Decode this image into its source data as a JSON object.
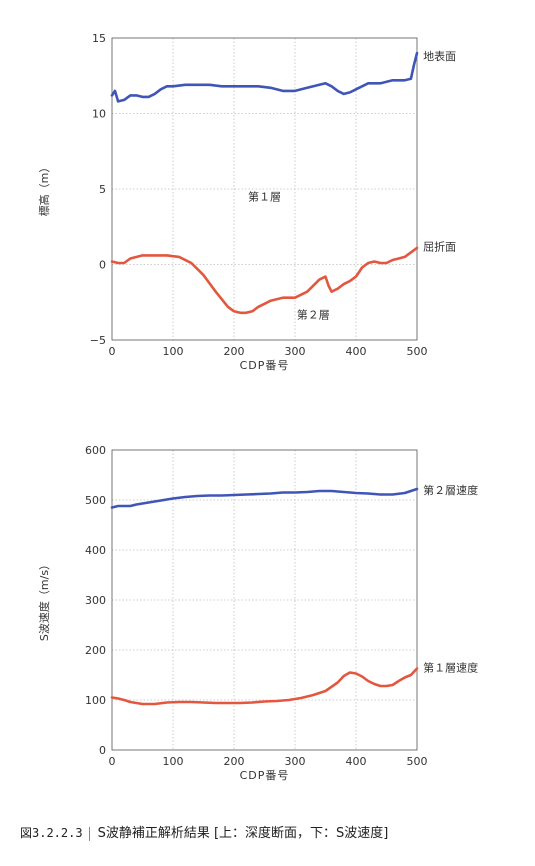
{
  "caption": {
    "number": "図3.2.2.3",
    "text": "S波静補正解析結果 [上：深度断面，下：S波速度]"
  },
  "chart_data": [
    {
      "type": "line",
      "title": "",
      "xlabel": "CDP番号",
      "ylabel": "標高（m）",
      "xlim": [
        0,
        500
      ],
      "ylim": [
        -5,
        15
      ],
      "xticks": [
        0,
        100,
        200,
        300,
        400,
        500
      ],
      "yticks": [
        -5,
        0,
        5,
        10,
        15
      ],
      "ytick_labels": [
        "−5",
        "0",
        "5",
        "10",
        "15"
      ],
      "grid": true,
      "annotations": [
        {
          "text": "地表面",
          "x": 510,
          "y": 13.8
        },
        {
          "text": "屈折面",
          "x": 510,
          "y": 1.2
        },
        {
          "text": "第１層",
          "x": 250,
          "y": 4.5
        },
        {
          "text": "第２層",
          "x": 330,
          "y": -3.3
        }
      ],
      "series": [
        {
          "name": "地表面",
          "color": "#3f56b8",
          "x": [
            0,
            5,
            10,
            20,
            30,
            40,
            50,
            60,
            70,
            80,
            90,
            100,
            120,
            140,
            160,
            180,
            200,
            220,
            240,
            260,
            280,
            300,
            320,
            340,
            350,
            360,
            370,
            380,
            390,
            400,
            420,
            440,
            460,
            480,
            490,
            495,
            500
          ],
          "y": [
            11.2,
            11.5,
            10.8,
            10.9,
            11.2,
            11.2,
            11.1,
            11.1,
            11.3,
            11.6,
            11.8,
            11.8,
            11.9,
            11.9,
            11.9,
            11.8,
            11.8,
            11.8,
            11.8,
            11.7,
            11.5,
            11.5,
            11.7,
            11.9,
            12.0,
            11.8,
            11.5,
            11.3,
            11.4,
            11.6,
            12.0,
            12.0,
            12.2,
            12.2,
            12.3,
            13.2,
            14.0
          ]
        },
        {
          "name": "屈折面",
          "color": "#e3573f",
          "x": [
            0,
            10,
            20,
            30,
            50,
            70,
            90,
            110,
            130,
            150,
            170,
            190,
            200,
            210,
            220,
            230,
            240,
            250,
            260,
            280,
            300,
            320,
            340,
            350,
            355,
            360,
            370,
            380,
            390,
            400,
            410,
            420,
            430,
            440,
            450,
            460,
            470,
            480,
            490,
            500
          ],
          "y": [
            0.2,
            0.1,
            0.1,
            0.4,
            0.6,
            0.6,
            0.6,
            0.5,
            0.1,
            -0.7,
            -1.8,
            -2.8,
            -3.1,
            -3.2,
            -3.2,
            -3.1,
            -2.8,
            -2.6,
            -2.4,
            -2.2,
            -2.2,
            -1.8,
            -1.0,
            -0.8,
            -1.4,
            -1.8,
            -1.6,
            -1.3,
            -1.1,
            -0.8,
            -0.2,
            0.1,
            0.2,
            0.1,
            0.1,
            0.3,
            0.4,
            0.5,
            0.8,
            1.1
          ]
        }
      ]
    },
    {
      "type": "line",
      "title": "",
      "xlabel": "CDP番号",
      "ylabel": "S波速度（m/s）",
      "xlim": [
        0,
        500
      ],
      "ylim": [
        0,
        600
      ],
      "xticks": [
        0,
        100,
        200,
        300,
        400,
        500
      ],
      "yticks": [
        0,
        100,
        200,
        300,
        400,
        500,
        600
      ],
      "ytick_labels": [
        "0",
        "100",
        "200",
        "300",
        "400",
        "500",
        "600"
      ],
      "grid": true,
      "annotations": [
        {
          "text": "第２層速度",
          "x": 510,
          "y": 520
        },
        {
          "text": "第１層速度",
          "x": 510,
          "y": 165
        }
      ],
      "series": [
        {
          "name": "第２層速度",
          "color": "#3f56b8",
          "x": [
            0,
            10,
            20,
            30,
            40,
            60,
            80,
            100,
            120,
            140,
            160,
            180,
            200,
            220,
            240,
            260,
            280,
            300,
            320,
            340,
            360,
            380,
            400,
            420,
            440,
            460,
            480,
            490,
            500
          ],
          "y": [
            485,
            488,
            488,
            488,
            491,
            495,
            499,
            503,
            506,
            508,
            509,
            509,
            510,
            511,
            512,
            513,
            515,
            515,
            516,
            518,
            518,
            516,
            514,
            513,
            511,
            511,
            514,
            518,
            522
          ]
        },
        {
          "name": "第１層速度",
          "color": "#e3573f",
          "x": [
            0,
            10,
            20,
            30,
            50,
            70,
            90,
            110,
            130,
            150,
            170,
            190,
            210,
            230,
            250,
            270,
            290,
            310,
            330,
            350,
            370,
            380,
            390,
            400,
            410,
            420,
            430,
            440,
            450,
            460,
            470,
            480,
            490,
            500
          ],
          "y": [
            105,
            103,
            100,
            96,
            92,
            92,
            95,
            96,
            96,
            95,
            94,
            94,
            94,
            95,
            97,
            98,
            100,
            104,
            110,
            118,
            135,
            148,
            155,
            153,
            147,
            138,
            132,
            128,
            128,
            130,
            138,
            145,
            150,
            163
          ]
        }
      ]
    }
  ]
}
